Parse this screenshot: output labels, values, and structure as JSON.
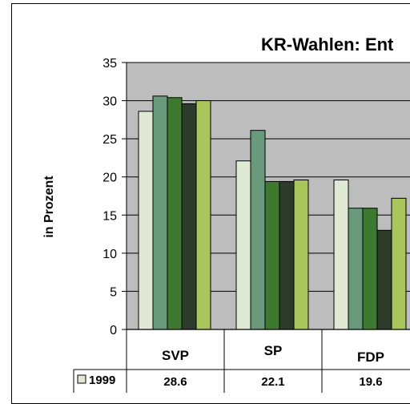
{
  "chart_data": {
    "type": "bar",
    "title": "KR-Wahlen: Ent",
    "ylabel": "in Prozent",
    "ylim": [
      0,
      35
    ],
    "yticks": [
      0,
      5,
      10,
      15,
      20,
      25,
      30,
      35
    ],
    "grid": true,
    "categories": [
      "SVP",
      "SP",
      "FDP"
    ],
    "series": [
      {
        "name": "1999",
        "values": [
          28.6,
          22.1,
          19.6
        ],
        "color": "#dfe9d3"
      },
      {
        "values": [
          30.6,
          26.1,
          15.9
        ],
        "color": "#6a9a7c"
      },
      {
        "values": [
          30.4,
          19.4,
          15.9
        ],
        "color": "#3d7a2f"
      },
      {
        "values": [
          29.6,
          19.4,
          13.0
        ],
        "color": "#2c3b2a"
      },
      {
        "values": [
          30.0,
          19.6,
          17.2
        ],
        "color": "#a9c65c"
      }
    ],
    "table": {
      "row_label": "1999",
      "values": [
        "28.6",
        "22.1",
        "19.6"
      ]
    }
  },
  "colors": {
    "plot_background": "#bdbdbd",
    "gridline": "#000000"
  }
}
